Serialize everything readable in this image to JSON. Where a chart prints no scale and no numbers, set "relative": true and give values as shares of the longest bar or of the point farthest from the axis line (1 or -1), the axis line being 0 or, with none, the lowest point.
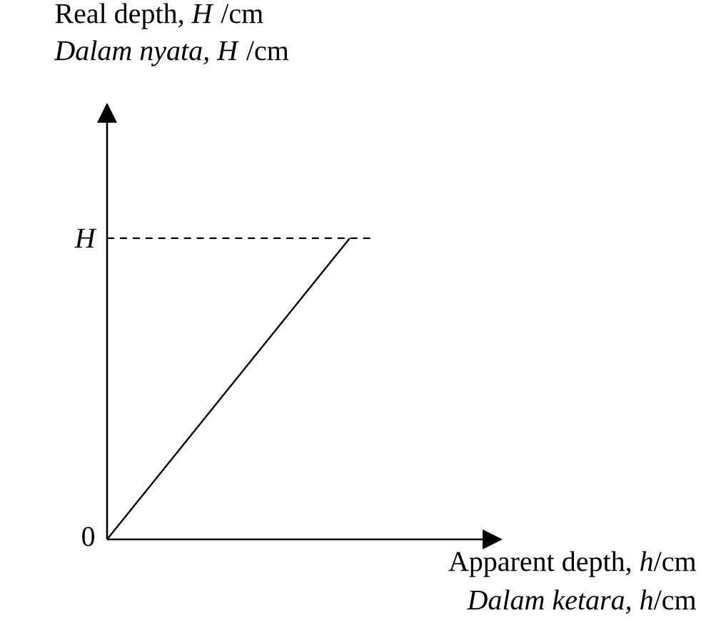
{
  "chart_data": {
    "type": "line",
    "relative": true,
    "categories": [
      null,
      null
    ],
    "values": [
      0,
      1
    ],
    "color": "#000000",
    "ref_lines": [
      {
        "axis": "y",
        "value": 1,
        "label": "H",
        "line_style": "dashed",
        "color": "#000000"
      }
    ],
    "xlabel": "Apparent depth, *h*/cm",
    "annotations": [
      "0",
      "Real depth, *H* /cm",
      "*Dalam nyata, H* /cm",
      "*Dalam ketara, h*/cm"
    ],
    "marker": "none",
    "line_style": "solid"
  }
}
